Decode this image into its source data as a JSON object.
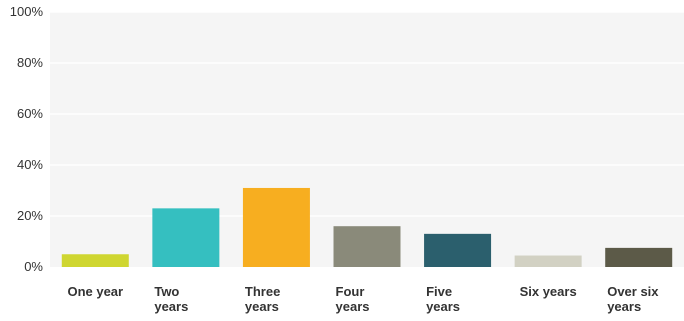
{
  "chart_data": {
    "type": "bar",
    "categories": [
      [
        "One year"
      ],
      [
        "Two",
        "years"
      ],
      [
        "Three",
        "years"
      ],
      [
        "Four",
        "years"
      ],
      [
        "Five",
        "years"
      ],
      [
        "Six years"
      ],
      [
        "Over six",
        "years"
      ]
    ],
    "values": [
      5,
      23,
      31,
      16,
      13,
      4.5,
      7.5
    ],
    "colors": [
      "#cfd631",
      "#35bfc0",
      "#f7ae20",
      "#8a8a7a",
      "#2b5f6d",
      "#d2d1c3",
      "#5c5a48"
    ],
    "ylim": [
      0,
      100
    ],
    "yticks": [
      "0%",
      "20%",
      "40%",
      "60%",
      "80%",
      "100%"
    ],
    "ytick_values": [
      0,
      20,
      40,
      60,
      80,
      100
    ],
    "grid": true,
    "plot_background": "#f5f5f5",
    "grid_color": "#ffffff",
    "title": "",
    "xlabel": "",
    "ylabel": ""
  }
}
